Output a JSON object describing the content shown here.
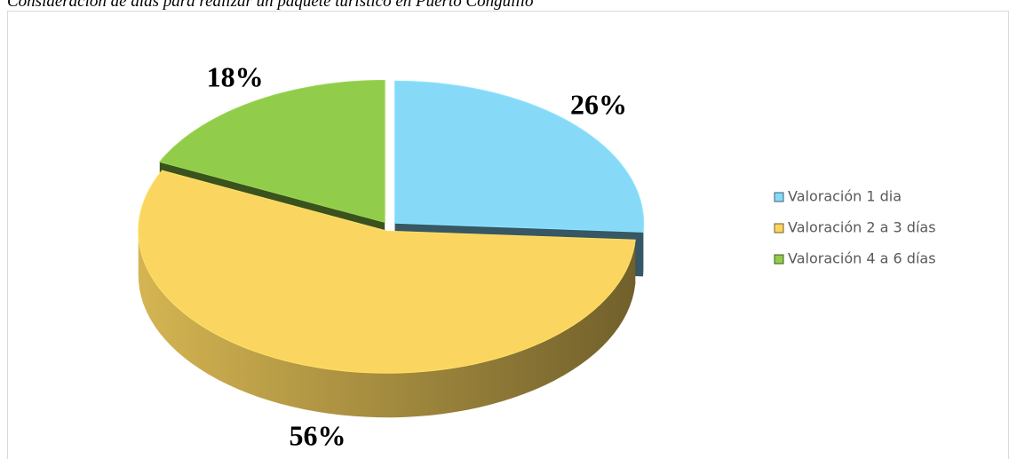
{
  "chart_data": {
    "type": "pie",
    "title": "Consideración de días para realizar un paquete turístico en Puerto Conguillo",
    "categories": [
      "Valoración 1 dia",
      "Valoración 2 a 3 días",
      "Valoración 4 a 6 días"
    ],
    "values": [
      26,
      56,
      18
    ],
    "value_labels": [
      "26%",
      "56%",
      "18%"
    ],
    "colors": [
      "#87daf7",
      "#fad560",
      "#92cc4b"
    ],
    "legend": "right"
  }
}
